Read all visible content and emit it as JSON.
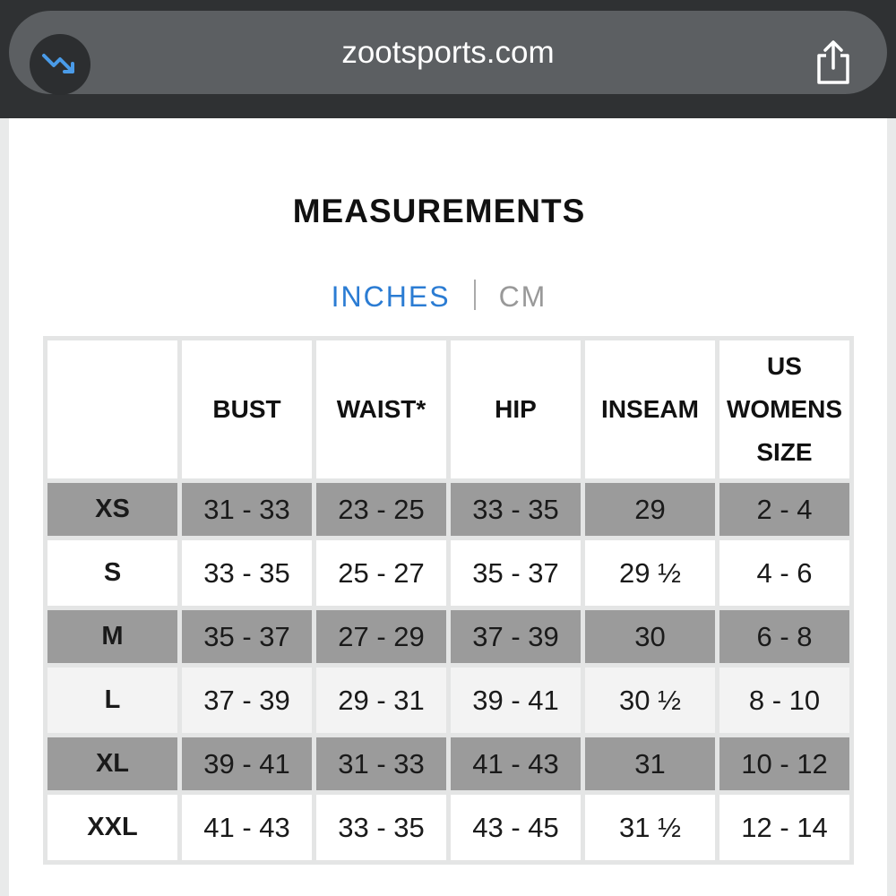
{
  "browser": {
    "url": "zootsports.com"
  },
  "page": {
    "title": "MEASUREMENTS",
    "units": [
      "INCHES",
      "CM"
    ],
    "table": {
      "header": [
        "BUST",
        "WAIST*",
        "HIP",
        "INSEAM",
        "US WOMENS SIZE"
      ],
      "rows": [
        [
          "XS",
          "31 - 33",
          "23 - 25",
          "33 - 35",
          "29",
          "2 - 4"
        ],
        [
          "S",
          "33 - 35",
          "25 - 27",
          "35 - 37",
          "29 ½",
          "4 - 6"
        ],
        [
          "M",
          "35 - 37",
          "27 - 29",
          "37 - 39",
          "30",
          "6 - 8"
        ],
        [
          "L",
          "37 - 39",
          "29 - 31",
          "39 - 41",
          "30 ½",
          "8 - 10"
        ],
        [
          "XL",
          "39 - 41",
          "31 - 33",
          "41 - 43",
          "31",
          "10 - 12"
        ],
        [
          "XXL",
          "41 - 43",
          "33 - 35",
          "43 - 45",
          "31 ½",
          "12 - 14"
        ]
      ]
    }
  }
}
